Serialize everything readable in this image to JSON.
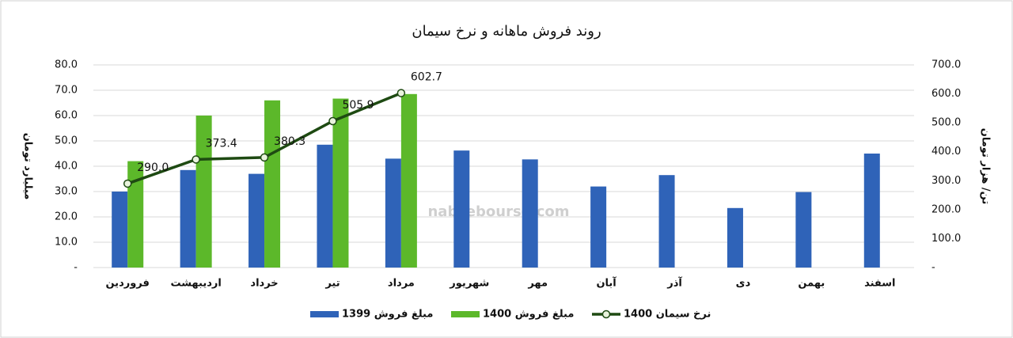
{
  "chart_data": {
    "type": "bar",
    "title": "روند فروش ماهانه و نرخ سیمان",
    "y_label": "میلیارد تومان",
    "y2_label": "تن/ هزار تومان",
    "watermark": "nabzebourse.com",
    "categories": [
      "فروردین",
      "اردیبهشت",
      "خرداد",
      "تیر",
      "مرداد",
      "شهریور",
      "مهر",
      "آبان",
      "آذر",
      "دی",
      "بهمن",
      "اسفند"
    ],
    "series": [
      {
        "name": "مبلغ فروش 1399",
        "type": "bar",
        "color": "#2f63b8",
        "values": [
          30.0,
          38.5,
          37.0,
          48.5,
          43.0,
          46.2,
          42.7,
          32.0,
          36.5,
          23.5,
          29.8,
          45.0
        ]
      },
      {
        "name": "مبلغ فروش 1400",
        "type": "bar",
        "color": "#5cb82a",
        "values": [
          42.0,
          60.0,
          66.0,
          66.7,
          68.5,
          null,
          null,
          null,
          null,
          null,
          null,
          null
        ]
      },
      {
        "name": "نرخ سیمان 1400",
        "type": "line",
        "axis": "y2",
        "color": "#1e4a12",
        "values": [
          290.0,
          373.4,
          380.3,
          505.9,
          602.7,
          null,
          null,
          null,
          null,
          null,
          null,
          null
        ],
        "value_labels": [
          "290.0",
          "373.4",
          "380.3",
          "505.9",
          "602.7",
          null,
          null,
          null,
          null,
          null,
          null,
          null
        ]
      }
    ],
    "ylim": [
      0,
      80
    ],
    "yticks": [
      {
        "value": 0,
        "label": "-"
      },
      {
        "value": 10,
        "label": "10.0"
      },
      {
        "value": 20,
        "label": "20.0"
      },
      {
        "value": 30,
        "label": "30.0"
      },
      {
        "value": 40,
        "label": "40.0"
      },
      {
        "value": 50,
        "label": "50.0"
      },
      {
        "value": 60,
        "label": "60.0"
      },
      {
        "value": 70,
        "label": "70.0"
      },
      {
        "value": 80,
        "label": "80.0"
      }
    ],
    "y2lim": [
      0,
      700
    ],
    "y2ticks": [
      {
        "value": 0,
        "label": "-"
      },
      {
        "value": 100,
        "label": "100.0"
      },
      {
        "value": 200,
        "label": "200.0"
      },
      {
        "value": 300,
        "label": "300.0"
      },
      {
        "value": 400,
        "label": "400.0"
      },
      {
        "value": 500,
        "label": "500.0"
      },
      {
        "value": 600,
        "label": "600.0"
      },
      {
        "value": 700,
        "label": "700.0"
      }
    ],
    "grid": true
  }
}
